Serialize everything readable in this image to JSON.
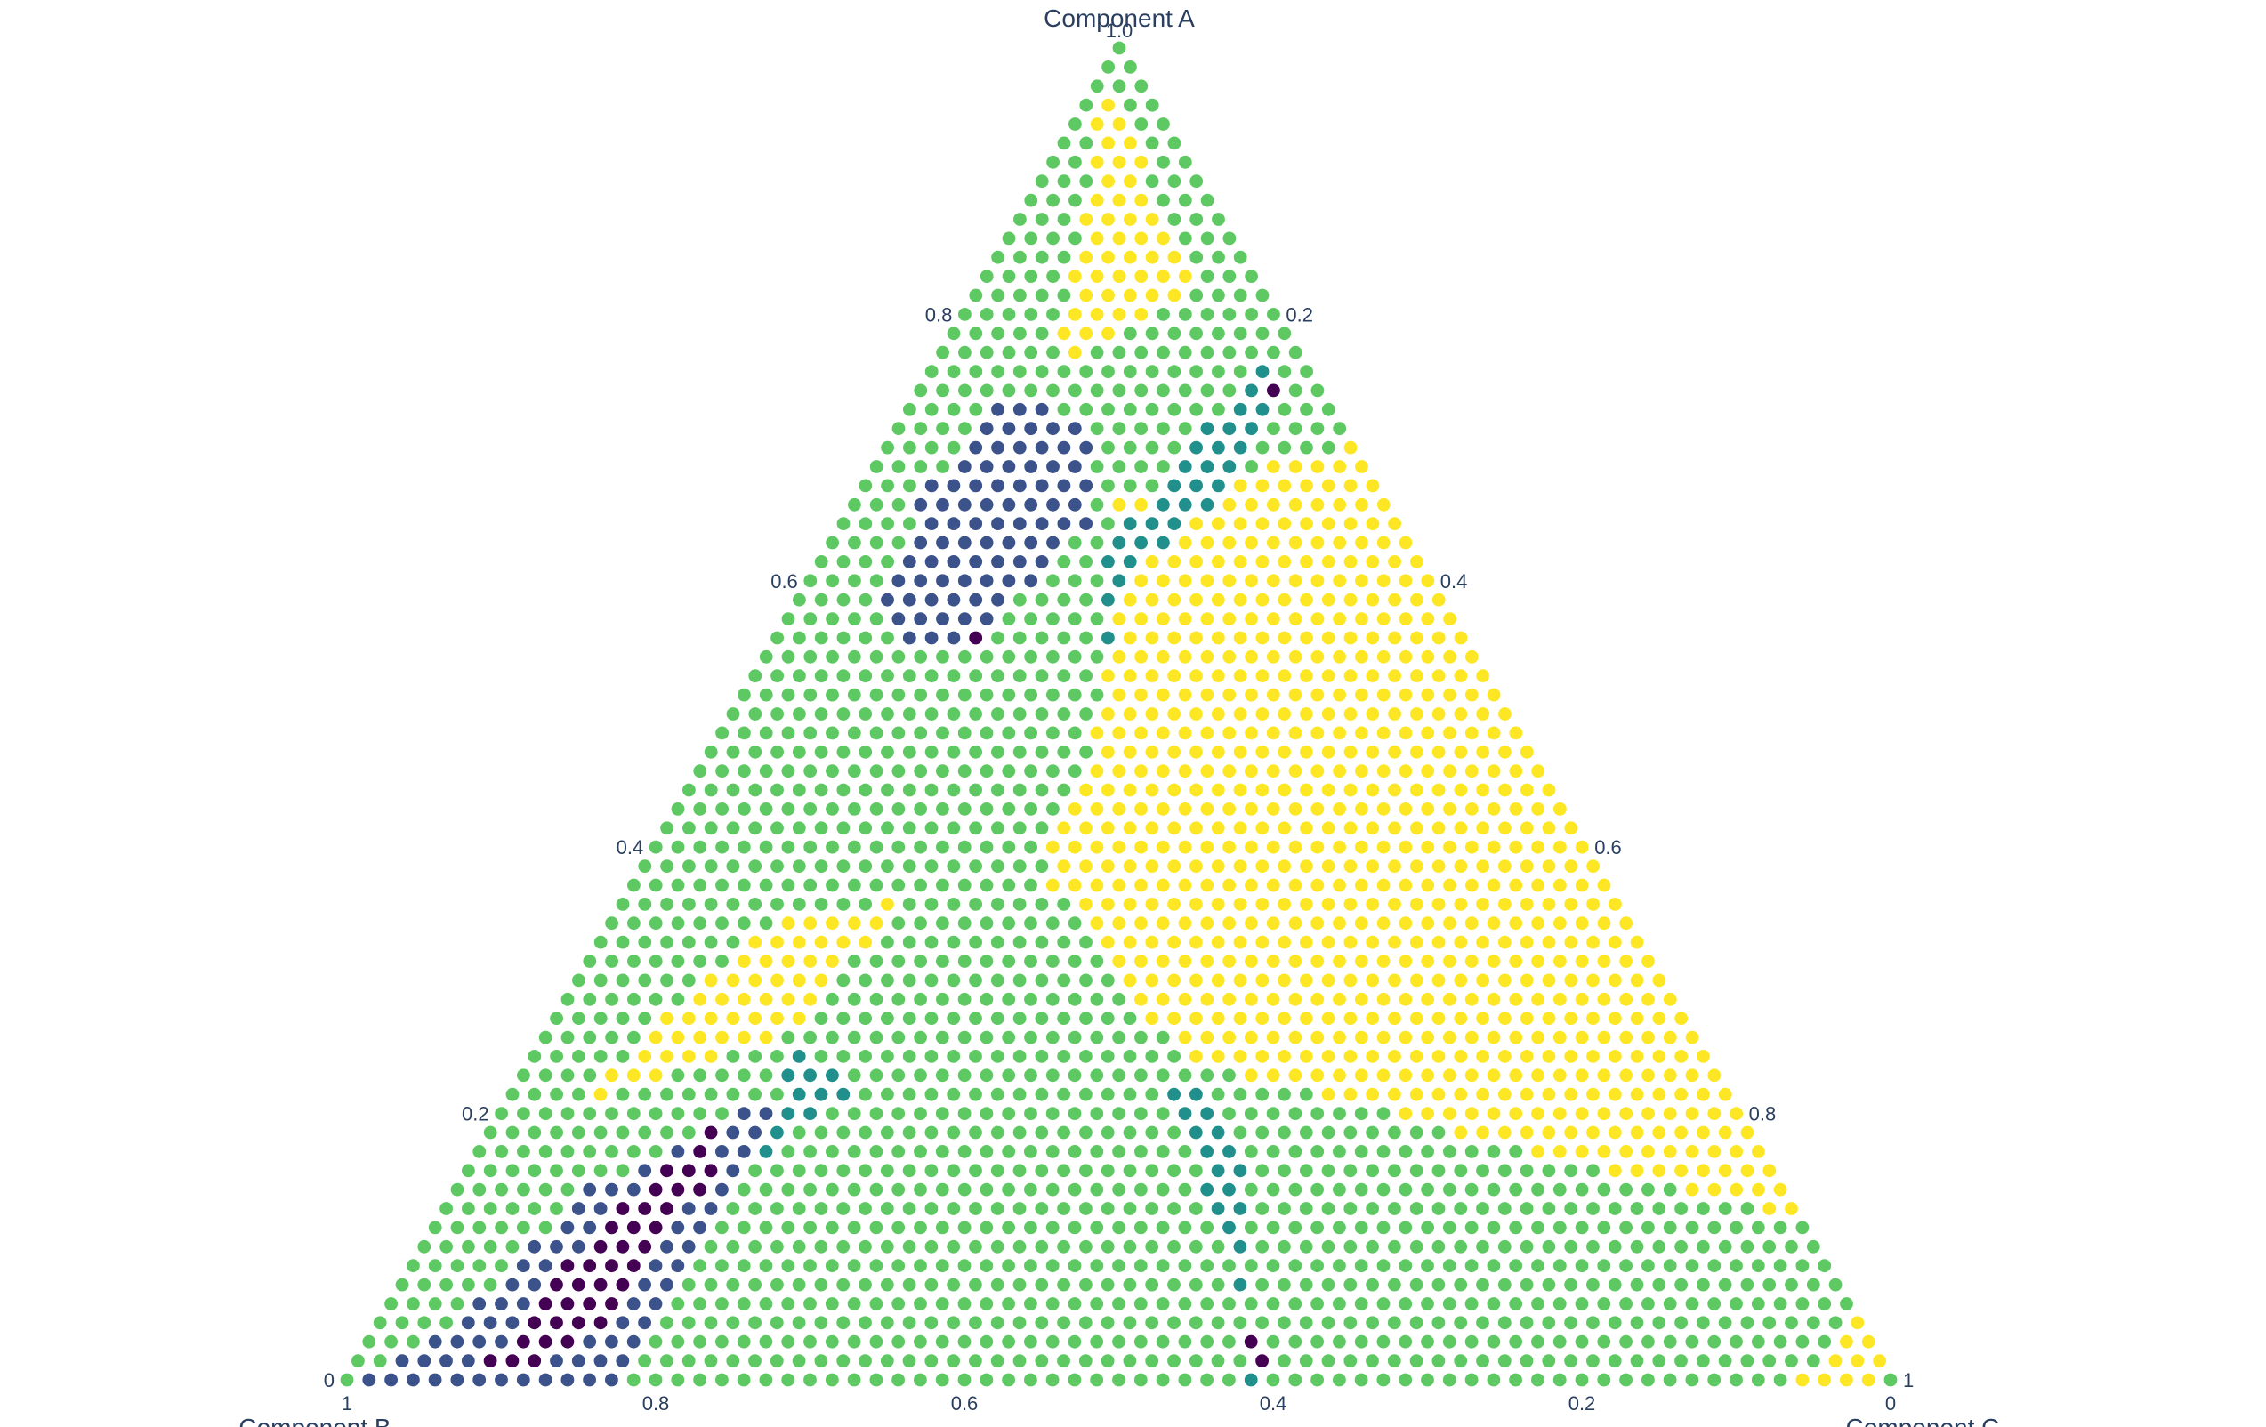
{
  "chart_data": {
    "type": "scatter",
    "subtype": "ternary",
    "title": "",
    "axes": {
      "a": {
        "title": "Component A",
        "ticks": [
          {
            "value": 1.0,
            "label": "1.0"
          },
          {
            "value": 0.8,
            "label": "0.8"
          },
          {
            "value": 0.6,
            "label": "0.6"
          },
          {
            "value": 0.4,
            "label": "0.4"
          },
          {
            "value": 0.2,
            "label": "0.2"
          },
          {
            "value": 0.0,
            "label": "0"
          }
        ],
        "range": [
          0,
          1
        ]
      },
      "b": {
        "title": "Component B",
        "ticks": [
          {
            "value": 1,
            "label": "1"
          },
          {
            "value": 0.8,
            "label": "0.8"
          },
          {
            "value": 0.6,
            "label": "0.6"
          },
          {
            "value": 0.4,
            "label": "0.4"
          },
          {
            "value": 0.2,
            "label": "0.2"
          },
          {
            "value": 0,
            "label": "0"
          }
        ],
        "range": [
          0,
          1
        ]
      },
      "c": {
        "title": "Component C",
        "ticks": [
          {
            "value": 1,
            "label": "1"
          },
          {
            "value": 0.8,
            "label": "0.8"
          },
          {
            "value": 0.6,
            "label": "0.6"
          },
          {
            "value": 0.4,
            "label": "0.4"
          },
          {
            "value": 0.2,
            "label": "0.2"
          },
          {
            "value": 0,
            "label": "0"
          }
        ],
        "range": [
          0,
          1
        ]
      }
    },
    "grid": false,
    "legend": "none",
    "marker_symbol": "circle",
    "marker_outline": "#ffffff",
    "colorscale": [
      "#440154",
      "#3b528b",
      "#21908c",
      "#27ad81",
      "#5ec962",
      "#fde725"
    ],
    "grid_divisions": 70,
    "regions_note": "marker color class by (a, b, c) composition",
    "regions": [
      {
        "color_class": 5,
        "polygon": [
          [
            0.76,
            0.16,
            0.08
          ],
          [
            0.98,
            0.02,
            0.0
          ],
          [
            0.82,
            0.04,
            0.14
          ]
        ]
      },
      {
        "color_class": 5,
        "polygon": [
          [
            0.7,
            0.0,
            0.3
          ],
          [
            0.12,
            0.0,
            0.88
          ],
          [
            0.24,
            0.34,
            0.42
          ],
          [
            0.38,
            0.36,
            0.26
          ],
          [
            0.5,
            0.26,
            0.24
          ],
          [
            0.66,
            0.17,
            0.17
          ]
        ]
      },
      {
        "color_class": 5,
        "polygon": [
          [
            0.34,
            0.56,
            0.1
          ],
          [
            0.2,
            0.76,
            0.04
          ],
          [
            0.26,
            0.58,
            0.16
          ],
          [
            0.36,
            0.46,
            0.18
          ]
        ]
      },
      {
        "color_class": 5,
        "polygon": [
          [
            0.0,
            0.06,
            0.94
          ],
          [
            0.05,
            0.0,
            0.95
          ],
          [
            0.0,
            0.0,
            1.0
          ]
        ]
      },
      {
        "color_class": 1,
        "polygon": [
          [
            0.74,
            0.21,
            0.05
          ],
          [
            0.66,
            0.3,
            0.04
          ],
          [
            0.56,
            0.38,
            0.06
          ],
          [
            0.55,
            0.32,
            0.13
          ],
          [
            0.64,
            0.2,
            0.16
          ],
          [
            0.72,
            0.16,
            0.12
          ]
        ]
      },
      {
        "color_class": 0,
        "polygon": [
          [
            0.56,
            0.32,
            0.12
          ],
          [
            0.54,
            0.32,
            0.14
          ],
          [
            0.56,
            0.3,
            0.14
          ]
        ]
      },
      {
        "color_class": 1,
        "polygon": [
          [
            0.0,
            0.99,
            0.01
          ],
          [
            0.0,
            0.82,
            0.18
          ],
          [
            0.1,
            0.72,
            0.18
          ],
          [
            0.22,
            0.6,
            0.18
          ],
          [
            0.14,
            0.78,
            0.08
          ],
          [
            0.05,
            0.9,
            0.05
          ]
        ]
      },
      {
        "color_class": 0,
        "polygon": [
          [
            0.0,
            0.92,
            0.08
          ],
          [
            0.1,
            0.8,
            0.1
          ],
          [
            0.2,
            0.66,
            0.14
          ],
          [
            0.16,
            0.68,
            0.16
          ],
          [
            0.02,
            0.84,
            0.14
          ]
        ]
      },
      {
        "color_class": 2,
        "polygon": [
          [
            0.2,
            0.62,
            0.18
          ],
          [
            0.24,
            0.6,
            0.16
          ],
          [
            0.26,
            0.58,
            0.16
          ],
          [
            0.22,
            0.56,
            0.22
          ],
          [
            0.16,
            0.66,
            0.18
          ]
        ]
      },
      {
        "color_class": 2,
        "polygon": [
          [
            0.78,
            0.0,
            0.22
          ],
          [
            0.68,
            0.08,
            0.24
          ],
          [
            0.6,
            0.2,
            0.2
          ],
          [
            0.54,
            0.24,
            0.22
          ],
          [
            0.62,
            0.2,
            0.18
          ],
          [
            0.72,
            0.08,
            0.2
          ]
        ]
      },
      {
        "color_class": 0,
        "polygon": [
          [
            0.76,
            0.02,
            0.22
          ],
          [
            0.72,
            0.04,
            0.24
          ],
          [
            0.73,
            0.04,
            0.23
          ]
        ]
      },
      {
        "color_class": 2,
        "polygon": [
          [
            0.22,
            0.36,
            0.42
          ],
          [
            0.0,
            0.4,
            0.6
          ],
          [
            0.0,
            0.42,
            0.58
          ],
          [
            0.16,
            0.34,
            0.5
          ],
          [
            0.22,
            0.34,
            0.44
          ]
        ]
      },
      {
        "color_class": 0,
        "polygon": [
          [
            0.0,
            0.4,
            0.6
          ],
          [
            0.04,
            0.4,
            0.56
          ],
          [
            0.01,
            0.41,
            0.58
          ]
        ]
      },
      {
        "color_class": 1,
        "polygon": [
          [
            0.44,
            0.54,
            0.02
          ],
          [
            0.38,
            0.58,
            0.04
          ],
          [
            0.4,
            0.56,
            0.04
          ]
        ]
      }
    ],
    "default_color_class": 4
  }
}
